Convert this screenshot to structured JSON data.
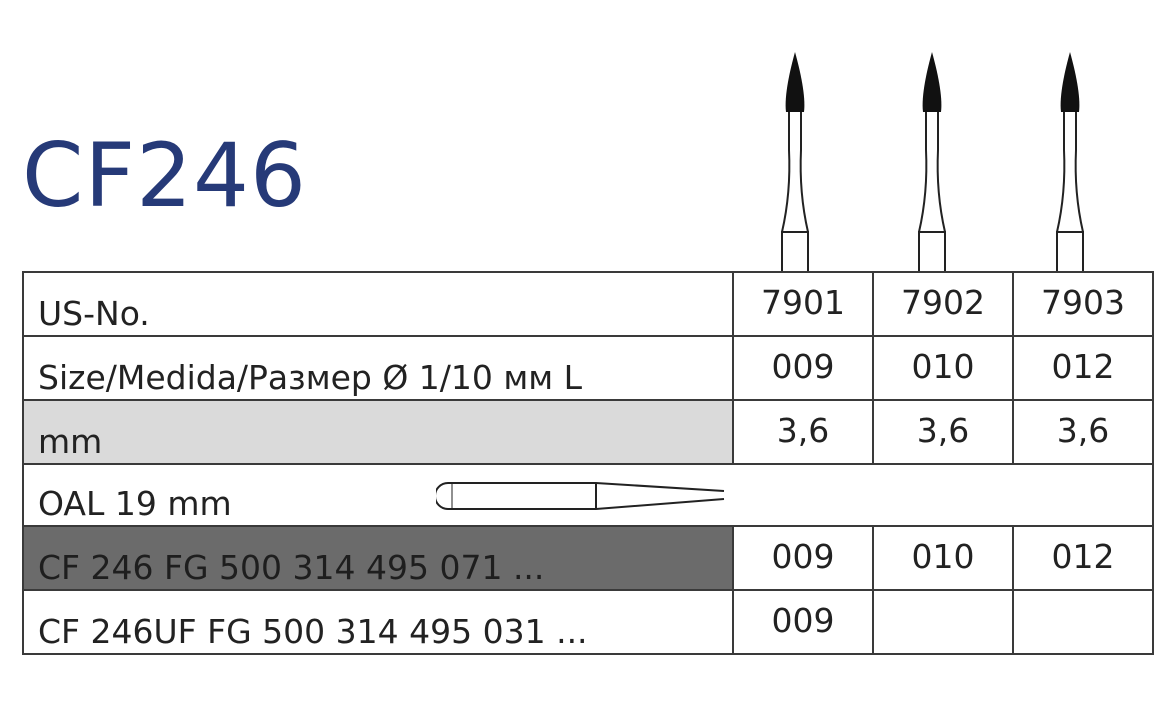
{
  "product_code": "CF246",
  "colors": {
    "title": "#263a78",
    "shaded_row": "#dadada",
    "dark_row": "#6b6b6b",
    "border": "#3a3a3a"
  },
  "icons": [
    "flame-bur-icon",
    "shank-outline-icon"
  ],
  "table": {
    "us_no": {
      "label": "US-No.",
      "values": [
        "7901",
        "7902",
        "7903"
      ]
    },
    "size": {
      "label": "Size/Medida/Размер Ø 1/10 мм L",
      "values": [
        "009",
        "010",
        "012"
      ]
    },
    "mm": {
      "label": "mm",
      "values": [
        "3,6",
        "3,6",
        "3,6"
      ]
    },
    "oal": {
      "label": "OAL 19 mm"
    },
    "fg": {
      "label": "CF 246 FG 500 314 495 071 ...",
      "values": [
        "009",
        "010",
        "012"
      ]
    },
    "uf": {
      "label": "CF 246UF FG 500 314 495 031 ...",
      "values": [
        "009",
        "",
        ""
      ]
    }
  }
}
